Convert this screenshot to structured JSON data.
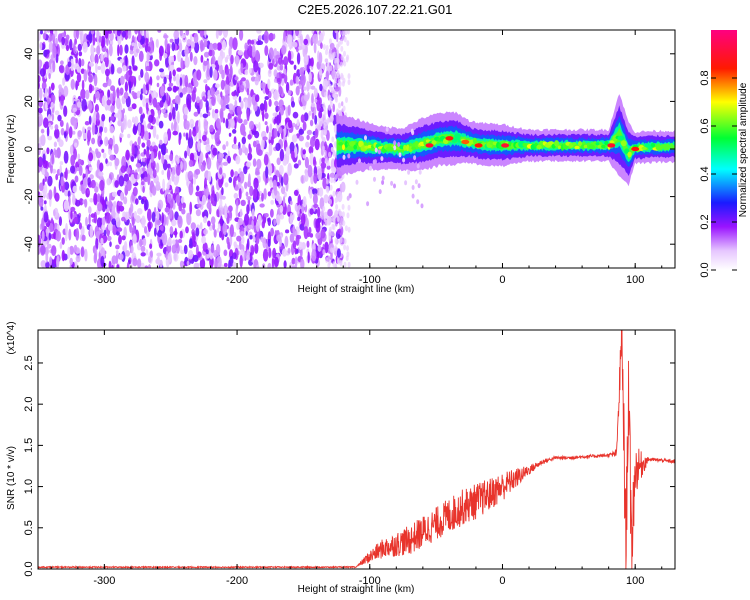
{
  "title": "C2E5.2026.107.22.21.G01",
  "chart_data": [
    {
      "type": "heatmap",
      "xlabel": "Height of straight line (km)",
      "ylabel": "Frequency (Hz)",
      "xlim": [
        -350,
        130
      ],
      "ylim": [
        -50,
        50
      ],
      "x_ticks": [
        "-300",
        "-200",
        "-100",
        "0",
        "100"
      ],
      "y_ticks": [
        "-40",
        "-20",
        "0",
        "20",
        "40"
      ],
      "colorbar": {
        "label": "Normalized spectral amplitude",
        "range": [
          0,
          1
        ],
        "ticks": [
          "0.0",
          "0.2",
          "0.4",
          "0.6",
          "0.8"
        ],
        "colors": [
          "#ffffff",
          "#9a14ff",
          "#1a1aff",
          "#00ffff",
          "#00ff33",
          "#ffff00",
          "#ff1a00",
          "#ff0080"
        ]
      },
      "noise_region": {
        "x": [
          -350,
          -120
        ],
        "y": [
          -50,
          50
        ],
        "amplitude": 0.2
      },
      "signal_trace": [
        {
          "x": -125,
          "freq": 1.5,
          "width": 6
        },
        {
          "x": -110,
          "freq": 1.5,
          "width": 5
        },
        {
          "x": -90,
          "freq": 0.5,
          "width": 4
        },
        {
          "x": -75,
          "freq": 0,
          "width": 4
        },
        {
          "x": -60,
          "freq": 2,
          "width": 5
        },
        {
          "x": -48,
          "freq": 4,
          "width": 5
        },
        {
          "x": -35,
          "freq": 4.5,
          "width": 5
        },
        {
          "x": -25,
          "freq": 3,
          "width": 4
        },
        {
          "x": -15,
          "freq": 2,
          "width": 4
        },
        {
          "x": 0,
          "freq": 1.5,
          "width": 4
        },
        {
          "x": 20,
          "freq": 1.5,
          "width": 3
        },
        {
          "x": 40,
          "freq": 1.5,
          "width": 3
        },
        {
          "x": 60,
          "freq": 1.5,
          "width": 3
        },
        {
          "x": 80,
          "freq": 1.5,
          "width": 3
        },
        {
          "x": 88,
          "freq": 6,
          "width": 8
        },
        {
          "x": 95,
          "freq": -2,
          "width": 6
        },
        {
          "x": 100,
          "freq": 0.5,
          "width": 3
        },
        {
          "x": 115,
          "freq": 1,
          "width": 3
        },
        {
          "x": 130,
          "freq": 1,
          "width": 3
        }
      ],
      "peaks": [
        {
          "x": -85,
          "freq": 0,
          "amplitude": 0.6
        },
        {
          "x": -55,
          "freq": 1.5,
          "amplitude": 0.9
        },
        {
          "x": -40,
          "freq": 4.5,
          "amplitude": 0.85
        },
        {
          "x": -28,
          "freq": 3,
          "amplitude": 0.8
        },
        {
          "x": -18,
          "freq": 1.5,
          "amplitude": 0.85
        },
        {
          "x": 2,
          "freq": 1.5,
          "amplitude": 0.9
        },
        {
          "x": 82,
          "freq": 1.5,
          "amplitude": 0.9
        },
        {
          "x": 100,
          "freq": 0,
          "amplitude": 0.85
        }
      ]
    },
    {
      "type": "line",
      "xlabel": "Height of straight line (km)",
      "ylabel": "SNR (10 * v/v)",
      "y_multiplier": "(x10^4)",
      "xlim": [
        -350,
        130
      ],
      "ylim": [
        0,
        2.9
      ],
      "x_ticks": [
        "-300",
        "-200",
        "-100",
        "0",
        "100"
      ],
      "y_ticks": [
        "0.0",
        "0.5",
        "1.0",
        "1.5",
        "2.0",
        "2.5"
      ],
      "series": [
        {
          "color": "#e8342c",
          "x": [
            -350,
            -300,
            -200,
            -110,
            -100,
            -90,
            -80,
            -70,
            -60,
            -50,
            -40,
            -30,
            -20,
            -10,
            0,
            10,
            20,
            30,
            40,
            50,
            60,
            70,
            80,
            86,
            90,
            93,
            95,
            97,
            100,
            110,
            120,
            130
          ],
          "y": [
            0.02,
            0.02,
            0.02,
            0.03,
            0.15,
            0.25,
            0.3,
            0.35,
            0.45,
            0.55,
            0.65,
            0.75,
            0.82,
            0.9,
            1.0,
            1.1,
            1.2,
            1.3,
            1.35,
            1.35,
            1.36,
            1.37,
            1.38,
            1.4,
            2.9,
            0.2,
            2.3,
            0.25,
            1.2,
            1.33,
            1.32,
            1.3
          ],
          "noise_amplitude": [
            0,
            0,
            0,
            0,
            0.08,
            0.12,
            0.15,
            0.18,
            0.2,
            0.2,
            0.22,
            0.22,
            0.22,
            0.2,
            0.18,
            0.12,
            0.06,
            0.03,
            0.02,
            0.02,
            0.02,
            0.02,
            0.02,
            0.05,
            0.4,
            0.6,
            0.6,
            0.6,
            0.3,
            0.02,
            0.02,
            0.02
          ]
        }
      ]
    }
  ]
}
